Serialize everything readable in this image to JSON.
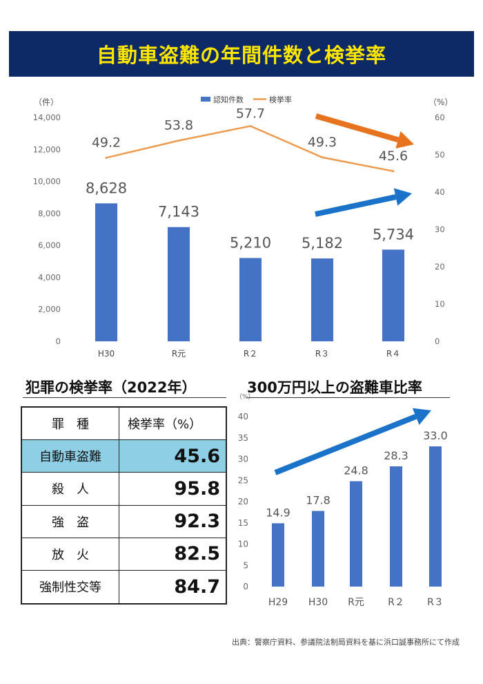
{
  "banner": {
    "title": "自動車盗難の年間件数と検挙率"
  },
  "chart_data": [
    {
      "type": "bar+line",
      "categories": [
        "H30",
        "R元",
        "R２",
        "R３",
        "R４"
      ],
      "series": [
        {
          "name": "認知件数",
          "type": "bar",
          "axis": "left",
          "values": [
            8628,
            7143,
            5210,
            5182,
            5734
          ],
          "labels": [
            "8,628",
            "7,143",
            "5,210",
            "5,182",
            "5,734"
          ],
          "color": "#4472c4"
        },
        {
          "name": "検挙率",
          "type": "line",
          "axis": "right",
          "values": [
            49.2,
            53.8,
            57.7,
            49.3,
            45.6
          ],
          "labels": [
            "49.2",
            "53.8",
            "57.7",
            "49.3",
            "45.6"
          ],
          "color": "#ed9b4f"
        }
      ],
      "left_unit": "（件）",
      "right_unit": "（%）",
      "ylim_left": [
        0,
        14000
      ],
      "ylim_right": [
        0,
        60
      ],
      "left_ticks": [
        "0",
        "2,000",
        "4,000",
        "6,000",
        "8,000",
        "10,000",
        "12,000",
        "14,000"
      ],
      "right_ticks": [
        "0",
        "10",
        "20",
        "30",
        "40",
        "50",
        "60"
      ],
      "legend_position": "top",
      "trend_arrows": [
        {
          "direction": "down",
          "color": "#e8731f"
        },
        {
          "direction": "up",
          "color": "#1a73c8"
        }
      ]
    },
    {
      "type": "bar",
      "title": "300万円以上の盗難車比率",
      "categories": [
        "H29",
        "H30",
        "R元",
        "R２",
        "R３"
      ],
      "values": [
        14.9,
        17.8,
        24.8,
        28.3,
        33.0
      ],
      "labels": [
        "14.9",
        "17.8",
        "24.8",
        "28.3",
        "33.0"
      ],
      "y_unit": "（%）",
      "ylim": [
        0,
        40
      ],
      "ticks": [
        "0",
        "5",
        "10",
        "15",
        "20",
        "25",
        "30",
        "35",
        "40"
      ],
      "bar_color": "#4472c4",
      "trend_arrow": {
        "direction": "up",
        "color": "#1a73c8"
      }
    }
  ],
  "crime_table": {
    "title": "犯罪の検挙率（2022年）",
    "headers": {
      "type": "罪　種",
      "rate": "検挙率（%）"
    },
    "rows": [
      {
        "name": "自動車盗難",
        "value": "45.6",
        "highlight": true
      },
      {
        "name": "殺　人",
        "value": "95.8"
      },
      {
        "name": "強　盗",
        "value": "92.3"
      },
      {
        "name": "放　火",
        "value": "82.5"
      },
      {
        "name": "強制性交等",
        "value": "84.7"
      }
    ],
    "highlight_color": "#8ecfe6"
  },
  "source": "出典：警察庁資料、参議院法制局資料を基に浜口誠事務所にて作成"
}
